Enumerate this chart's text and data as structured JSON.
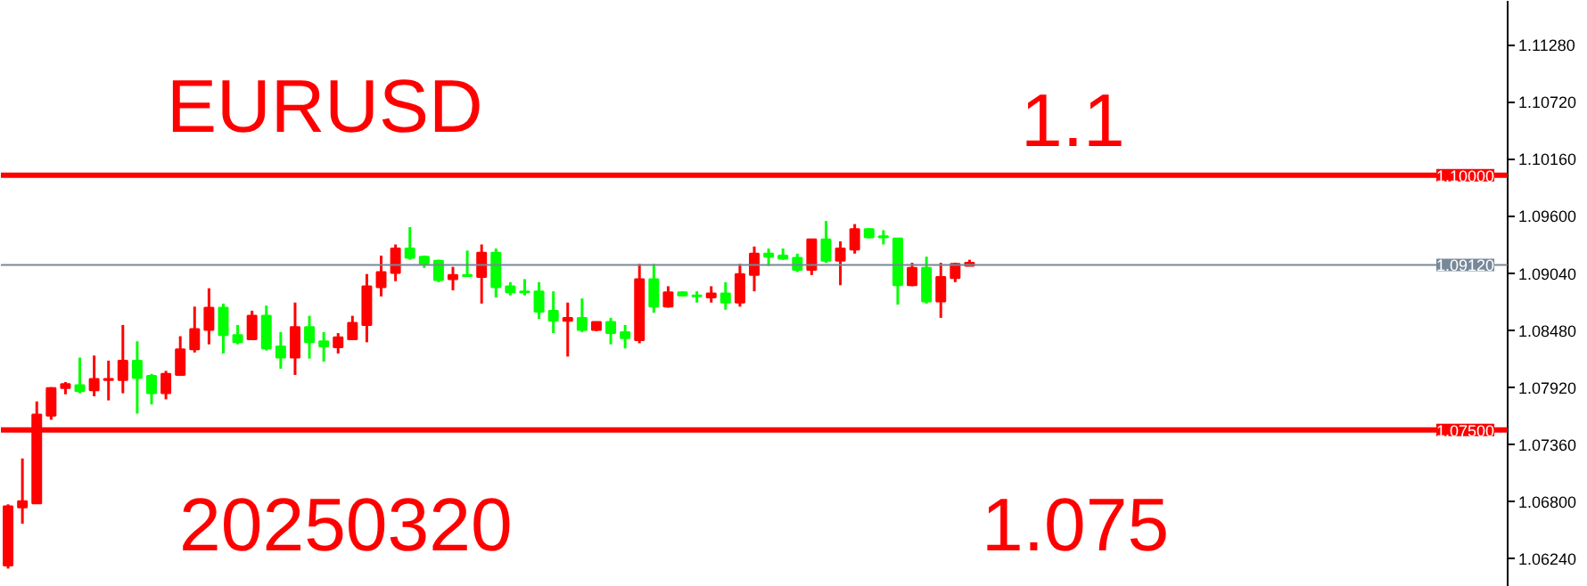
{
  "chart_data": {
    "type": "candlestick",
    "categories": [
      null,
      null,
      null,
      null,
      null,
      null,
      null,
      null,
      null,
      null,
      null,
      null,
      null,
      null,
      null,
      null,
      null,
      null,
      null,
      null,
      null,
      null,
      null,
      null,
      null,
      null,
      null,
      null,
      null,
      null,
      null,
      null,
      null,
      null,
      null,
      null,
      null,
      null,
      null,
      null,
      null,
      null,
      null,
      null,
      null,
      null,
      null,
      null,
      null,
      null,
      null,
      null,
      null,
      null,
      null,
      null,
      null,
      null,
      null,
      null,
      null,
      null,
      null,
      null,
      null,
      null,
      null,
      null,
      null,
      null,
      null,
      null,
      null,
      null,
      null,
      null,
      null,
      null,
      null,
      null,
      null,
      null,
      null,
      null,
      null,
      null,
      null,
      null,
      null,
      null,
      null,
      null,
      null,
      null,
      null,
      null,
      null,
      null,
      null,
      null,
      null,
      null,
      null,
      null,
      null
    ],
    "ohlc": [
      [
        1.0617,
        1.0677,
        1.0614,
        1.0675
      ],
      [
        1.0674,
        1.0722,
        1.0658,
        1.068
      ],
      [
        1.0678,
        1.0778,
        1.0678,
        1.0765
      ],
      [
        1.0764,
        1.0792,
        1.076,
        1.0791
      ],
      [
        1.0791,
        1.0797,
        1.0785,
        1.0795
      ],
      [
        1.0794,
        1.0821,
        1.0786,
        1.0788
      ],
      [
        1.0789,
        1.0823,
        1.0783,
        1.08
      ],
      [
        1.0799,
        1.0818,
        1.0779,
        1.08
      ],
      [
        1.0799,
        1.0853,
        1.0786,
        1.0818
      ],
      [
        1.0818,
        1.0837,
        1.0766,
        1.0801
      ],
      [
        1.0803,
        1.0805,
        1.0775,
        1.0786
      ],
      [
        1.0786,
        1.0808,
        1.078,
        1.0805
      ],
      [
        1.0804,
        1.0842,
        1.0803,
        1.0829
      ],
      [
        1.0829,
        1.0871,
        1.0826,
        1.0849
      ],
      [
        1.0848,
        1.0889,
        1.0834,
        1.087
      ],
      [
        1.087,
        1.0874,
        1.0825,
        1.0843
      ],
      [
        1.0843,
        1.0853,
        1.0834,
        1.0836
      ],
      [
        1.0839,
        1.0867,
        1.0839,
        1.0862
      ],
      [
        1.0862,
        1.0872,
        1.0828,
        1.083
      ],
      [
        1.0832,
        1.0846,
        1.081,
        1.0821
      ],
      [
        1.0821,
        1.0875,
        1.0804,
        1.0851
      ],
      [
        1.0851,
        1.0862,
        1.082,
        1.0836
      ],
      [
        1.0837,
        1.0846,
        1.0817,
        1.0832
      ],
      [
        1.0831,
        1.0845,
        1.0825,
        1.0841
      ],
      [
        1.0839,
        1.0862,
        1.0839,
        1.0855
      ],
      [
        1.0853,
        1.0903,
        1.0836,
        1.0891
      ],
      [
        1.089,
        1.0921,
        1.0881,
        1.0905
      ],
      [
        1.0904,
        1.0932,
        1.0896,
        1.0928
      ],
      [
        1.0928,
        1.0949,
        1.0917,
        1.0919
      ],
      [
        1.092,
        1.0921,
        1.0909,
        1.0913
      ],
      [
        1.0916,
        1.0917,
        1.0895,
        1.0897
      ],
      [
        1.0898,
        1.091,
        1.0887,
        1.0902
      ],
      [
        1.0902,
        1.0926,
        1.09,
        1.0901
      ],
      [
        1.09,
        1.0932,
        1.0874,
        1.0924
      ],
      [
        1.0924,
        1.0928,
        1.088,
        1.089
      ],
      [
        1.0891,
        1.0895,
        1.0882,
        1.0885
      ],
      [
        1.0886,
        1.0898,
        1.0882,
        1.0885
      ],
      [
        1.0886,
        1.0895,
        1.0859,
        1.0866
      ],
      [
        1.0867,
        1.0886,
        1.0845,
        1.0857
      ],
      [
        1.0857,
        1.0875,
        1.0822,
        1.086
      ],
      [
        1.086,
        1.0879,
        1.0846,
        1.0848
      ],
      [
        1.0848,
        1.0856,
        1.0847,
        1.0856
      ],
      [
        1.0856,
        1.086,
        1.0834,
        1.0845
      ],
      [
        1.0846,
        1.0853,
        1.083,
        1.084
      ],
      [
        1.0838,
        1.0913,
        1.0835,
        1.0898
      ],
      [
        1.0898,
        1.0913,
        1.0865,
        1.0871
      ],
      [
        1.0871,
        1.0891,
        1.087,
        1.0885
      ],
      [
        1.0885,
        1.0886,
        1.0881,
        1.0882
      ],
      [
        1.0882,
        1.0886,
        1.0875,
        1.0881
      ],
      [
        1.088,
        1.0891,
        1.0875,
        1.0884
      ],
      [
        1.0884,
        1.0895,
        1.0868,
        1.0875
      ],
      [
        1.0875,
        1.0913,
        1.0871,
        1.0903
      ],
      [
        1.0902,
        1.093,
        1.0886,
        1.0923
      ],
      [
        1.0923,
        1.0928,
        1.0911,
        1.092
      ],
      [
        1.0921,
        1.0928,
        1.0917,
        1.0918
      ],
      [
        1.0919,
        1.0923,
        1.0905,
        1.0907
      ],
      [
        1.0907,
        1.0937,
        1.0902,
        1.0937
      ],
      [
        1.0937,
        1.0955,
        1.0914,
        1.0916
      ],
      [
        1.0916,
        1.0935,
        1.0892,
        1.0928
      ],
      [
        1.0927,
        1.0952,
        1.0923,
        1.0947
      ],
      [
        1.0947,
        1.0948,
        1.0938,
        1.0939
      ],
      [
        1.094,
        1.0946,
        1.0932,
        1.0939
      ],
      [
        1.0938,
        1.0938,
        1.0873,
        1.0892
      ],
      [
        1.0892,
        1.0914,
        1.0891,
        1.0909
      ],
      [
        1.0909,
        1.092,
        1.0874,
        1.0876
      ],
      [
        1.0876,
        1.0914,
        1.086,
        1.09
      ],
      [
        1.0899,
        1.0914,
        1.0895,
        1.0913
      ],
      [
        1.0911,
        1.0917,
        1.0911,
        1.0914
      ],
      null,
      null,
      null,
      null,
      null,
      null,
      null,
      null,
      null,
      null,
      null,
      null,
      null,
      null,
      null,
      null,
      null,
      null,
      null,
      null,
      null,
      null,
      null,
      null,
      null,
      null,
      null,
      null,
      null,
      null,
      null,
      null,
      null,
      null,
      null,
      null,
      null
    ],
    "colors": [
      "#ff0000",
      "#ff0000",
      "#ff0000",
      "#ff0000",
      "#ff0000",
      "#00ff00",
      "#ff0000",
      "#ff0000",
      "#ff0000",
      "#00ff00",
      "#00ff00",
      "#ff0000",
      "#ff0000",
      "#ff0000",
      "#ff0000",
      "#00ff00",
      "#00ff00",
      "#ff0000",
      "#00ff00",
      "#00ff00",
      "#ff0000",
      "#00ff00",
      "#00ff00",
      "#ff0000",
      "#ff0000",
      "#ff0000",
      "#ff0000",
      "#ff0000",
      "#00ff00",
      "#00ff00",
      "#00ff00",
      "#ff0000",
      "#00ff00",
      "#ff0000",
      "#00ff00",
      "#00ff00",
      "#00ff00",
      "#00ff00",
      "#00ff00",
      "#ff0000",
      "#00ff00",
      "#ff0000",
      "#00ff00",
      "#00ff00",
      "#ff0000",
      "#00ff00",
      "#ff0000",
      "#00ff00",
      "#00ff00",
      "#ff0000",
      "#00ff00",
      "#ff0000",
      "#ff0000",
      "#00ff00",
      "#00ff00",
      "#00ff00",
      "#ff0000",
      "#00ff00",
      "#ff0000",
      "#ff0000",
      "#00ff00",
      "#00ff00",
      "#00ff00",
      "#ff0000",
      "#00ff00",
      "#ff0000",
      "#ff0000",
      "#ff0000",
      null,
      null,
      null,
      null,
      null,
      null,
      null,
      null,
      null,
      null,
      null,
      null,
      null,
      null,
      null,
      null,
      null,
      null,
      null,
      null,
      null,
      null,
      null,
      null,
      null,
      null,
      null,
      null,
      null,
      null,
      null,
      null,
      null,
      null,
      null,
      null,
      null
    ],
    "ylim": [
      1.0596,
      1.1171
    ],
    "yticks": [
      {
        "value": 1.1128,
        "label": "1.11280"
      },
      {
        "value": 1.1072,
        "label": "1.10720"
      },
      {
        "value": 1.1016,
        "label": "1.10160"
      },
      {
        "value": 1.096,
        "label": "1.09600"
      },
      {
        "value": 1.0904,
        "label": "1.09040"
      },
      {
        "value": 1.0848,
        "label": "1.08480"
      },
      {
        "value": 1.0792,
        "label": "1.07920"
      },
      {
        "value": 1.0736,
        "label": "1.07360"
      },
      {
        "value": 1.068,
        "label": "1.06800"
      },
      {
        "value": 1.0624,
        "label": "1.06240"
      }
    ],
    "ref_lines": [
      {
        "axis": "y",
        "value": 1.1,
        "label": "1.10000",
        "color": "#ff0000"
      },
      {
        "axis": "y",
        "value": 1.075,
        "label": "1.07500",
        "color": "#ff0000"
      },
      {
        "axis": "y",
        "value": 1.0912,
        "label": "1.09120",
        "color": "#778899"
      }
    ],
    "annotations": [
      "EURUSD",
      "1.1",
      "20250320",
      "1.075"
    ],
    "tick_labels": "y",
    "grid": false
  }
}
